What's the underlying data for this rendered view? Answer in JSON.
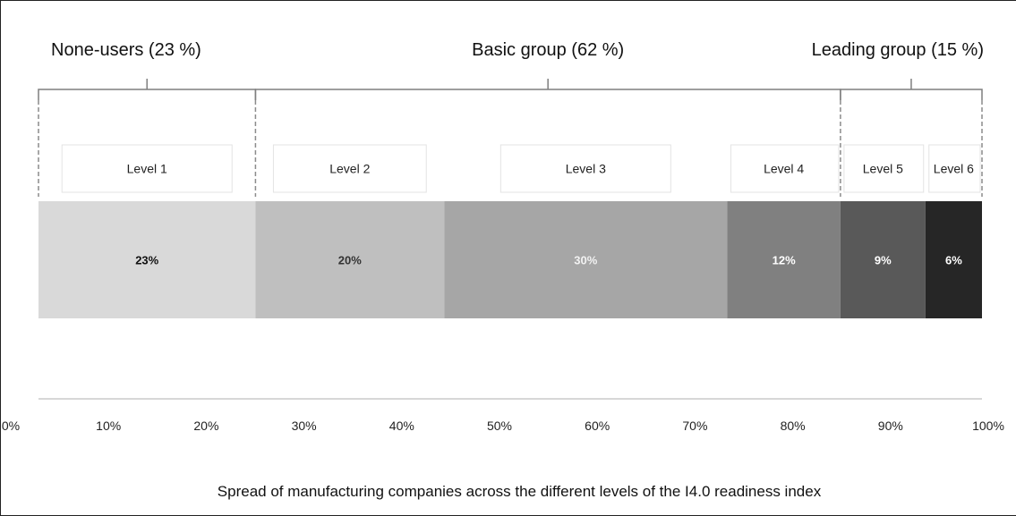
{
  "chart_data": {
    "type": "bar",
    "orientation": "horizontal-stacked",
    "xlabel": "Spread of manufacturing companies across the different levels of the I4.0 readiness index",
    "xlim": [
      0,
      100
    ],
    "x_ticks": [
      "0%",
      "10%",
      "20%",
      "30%",
      "40%",
      "50%",
      "60%",
      "70%",
      "80%",
      "90%",
      "100%"
    ],
    "segments": [
      {
        "level": "Level 1",
        "value": 23,
        "label": "23%",
        "color": "#d9d9d9",
        "text_color": "#111111"
      },
      {
        "level": "Level 2",
        "value": 20,
        "label": "20%",
        "color": "#bfbfbf",
        "text_color": "#333333"
      },
      {
        "level": "Level 3",
        "value": 30,
        "label": "30%",
        "color": "#a6a6a6",
        "text_color": "#f2f2f2"
      },
      {
        "level": "Level 4",
        "value": 12,
        "label": "12%",
        "color": "#808080",
        "text_color": "#ffffff"
      },
      {
        "level": "Level 5",
        "value": 9,
        "label": "9%",
        "color": "#595959",
        "text_color": "#ffffff"
      },
      {
        "level": "Level 6",
        "value": 6,
        "label": "6%",
        "color": "#262626",
        "text_color": "#ffffff"
      }
    ],
    "groups": [
      {
        "label": "None-users  (23 %)",
        "start": 0,
        "end": 23
      },
      {
        "label": "Basic group (62 %)",
        "start": 23,
        "end": 85
      },
      {
        "label": "Leading group (15 %)",
        "start": 85,
        "end": 100
      }
    ],
    "grid": false,
    "legend": "none"
  }
}
